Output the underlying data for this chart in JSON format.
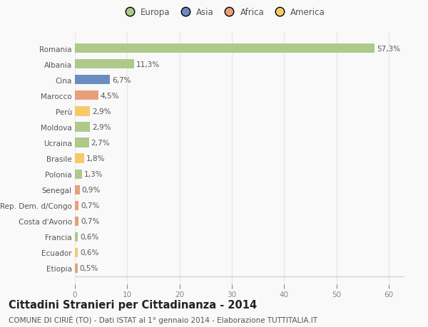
{
  "categories": [
    "Romania",
    "Albania",
    "Cina",
    "Marocco",
    "Perù",
    "Moldova",
    "Ucraina",
    "Brasile",
    "Polonia",
    "Senegal",
    "Rep. Dem. d/Congo",
    "Costa d'Avorio",
    "Francia",
    "Ecuador",
    "Etiopia"
  ],
  "values": [
    57.3,
    11.3,
    6.7,
    4.5,
    2.9,
    2.9,
    2.7,
    1.8,
    1.3,
    0.9,
    0.7,
    0.7,
    0.6,
    0.6,
    0.5
  ],
  "labels": [
    "57,3%",
    "11,3%",
    "6,7%",
    "4,5%",
    "2,9%",
    "2,9%",
    "2,7%",
    "1,8%",
    "1,3%",
    "0,9%",
    "0,7%",
    "0,7%",
    "0,6%",
    "0,6%",
    "0,5%"
  ],
  "colors": [
    "#aec98a",
    "#aec98a",
    "#6b8cbf",
    "#e8a07a",
    "#f5cb6a",
    "#aec98a",
    "#aec98a",
    "#f5cb6a",
    "#aec98a",
    "#e8a07a",
    "#e8a07a",
    "#e8a07a",
    "#aec98a",
    "#f5cb6a",
    "#e8a07a"
  ],
  "legend_labels": [
    "Europa",
    "Asia",
    "Africa",
    "America"
  ],
  "legend_colors": [
    "#aec98a",
    "#6b8cbf",
    "#e8a07a",
    "#f5cb6a"
  ],
  "title": "Cittadini Stranieri per Cittadinanza - 2014",
  "subtitle": "COMUNE DI CIRIÈ (TO) - Dati ISTAT al 1° gennaio 2014 - Elaborazione TUTTITALIA.IT",
  "xlim": [
    0,
    63
  ],
  "xticks": [
    0,
    10,
    20,
    30,
    40,
    50,
    60
  ],
  "background_color": "#f9f9f9",
  "grid_color": "#e8e8e8",
  "bar_height": 0.6,
  "title_fontsize": 10.5,
  "subtitle_fontsize": 7.5,
  "tick_fontsize": 7.5,
  "label_fontsize": 7.5,
  "legend_fontsize": 8.5
}
